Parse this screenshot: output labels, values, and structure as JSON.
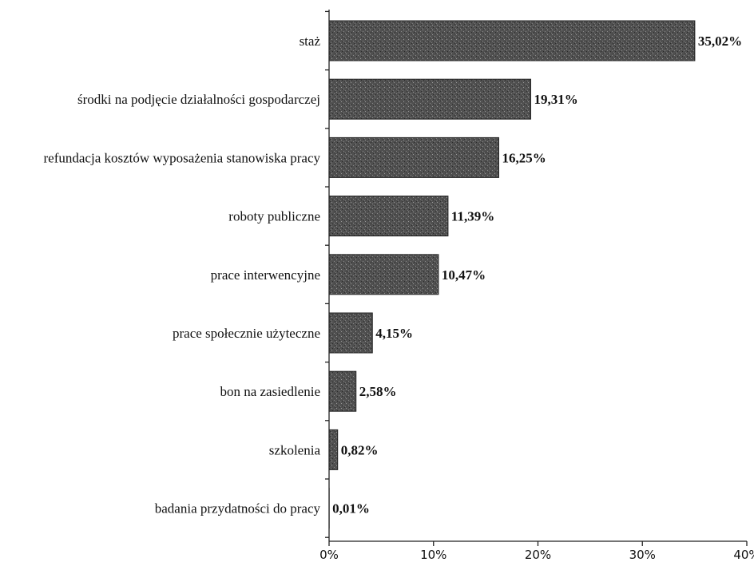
{
  "chart_data": {
    "type": "bar",
    "orientation": "horizontal",
    "categories": [
      "staż",
      "środki na podjęcie działalności gospodarczej",
      "refundacja kosztów wyposażenia stanowiska pracy",
      "roboty publiczne",
      "prace interwencyjne",
      "prace społecznie użyteczne",
      "bon na zasiedlenie",
      "szkolenia",
      "badania przydatności do pracy"
    ],
    "values": [
      35.02,
      19.31,
      16.25,
      11.39,
      10.47,
      4.15,
      2.58,
      0.82,
      0.01
    ],
    "value_labels": [
      "35,02%",
      "19,31%",
      "16,25%",
      "11,39%",
      "10,47%",
      "4,15%",
      "2,58%",
      "0,82%",
      "0,01%"
    ],
    "xlim": [
      0,
      40
    ],
    "x_ticks": [
      0,
      10,
      20,
      30,
      40
    ],
    "x_tick_labels": [
      "0%",
      "10%",
      "20%",
      "30%",
      "40%"
    ],
    "title": "",
    "xlabel": "",
    "ylabel": "",
    "grid": false,
    "legend": "none",
    "bar_color": "#555555"
  }
}
